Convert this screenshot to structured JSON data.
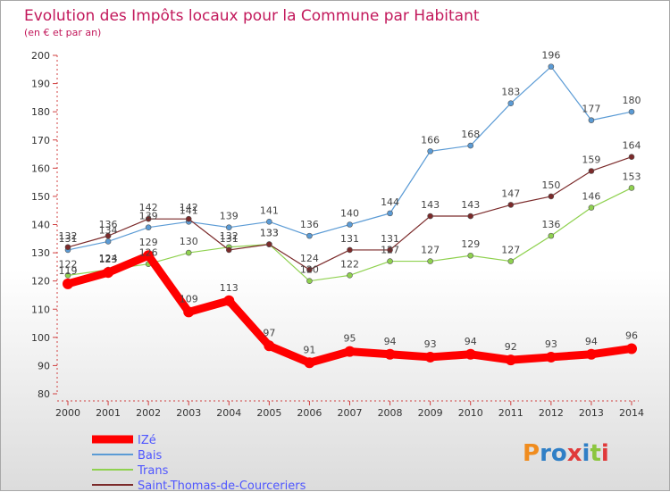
{
  "chart_data": {
    "type": "line",
    "title": "Evolution des Impôts locaux pour la Commune par Habitant",
    "subtitle": "(en € et par an)",
    "x": [
      "2000",
      "2001",
      "2002",
      "2003",
      "2004",
      "2005",
      "2006",
      "2007",
      "2008",
      "2009",
      "2010",
      "2011",
      "2012",
      "2013",
      "2014"
    ],
    "ylim": [
      80,
      200
    ],
    "yticks": [
      80,
      90,
      100,
      110,
      120,
      130,
      140,
      150,
      160,
      170,
      180,
      190,
      200
    ],
    "grid": false,
    "legend_placement": "bottom-left",
    "series": [
      {
        "name": "IZé",
        "color": "#ff0000",
        "values": [
          119,
          123,
          129,
          109,
          113,
          97,
          91,
          95,
          94,
          93,
          94,
          92,
          93,
          94,
          96
        ]
      },
      {
        "name": "Bais",
        "color": "#5b9bd5",
        "values": [
          131,
          134,
          139,
          141,
          139,
          141,
          136,
          140,
          144,
          166,
          168,
          183,
          196,
          177,
          180
        ]
      },
      {
        "name": "Trans",
        "color": "#8fd14f",
        "values": [
          122,
          124,
          126,
          130,
          132,
          133,
          120,
          122,
          127,
          127,
          129,
          127,
          136,
          146,
          153
        ]
      },
      {
        "name": "Saint-Thomas-de-Courceriers",
        "color": "#7b2a2a",
        "values": [
          132,
          136,
          142,
          142,
          131,
          133,
          124,
          131,
          131,
          143,
          143,
          147,
          150,
          159,
          164
        ]
      }
    ]
  },
  "branding": {
    "logo_text": "Proxiti"
  }
}
